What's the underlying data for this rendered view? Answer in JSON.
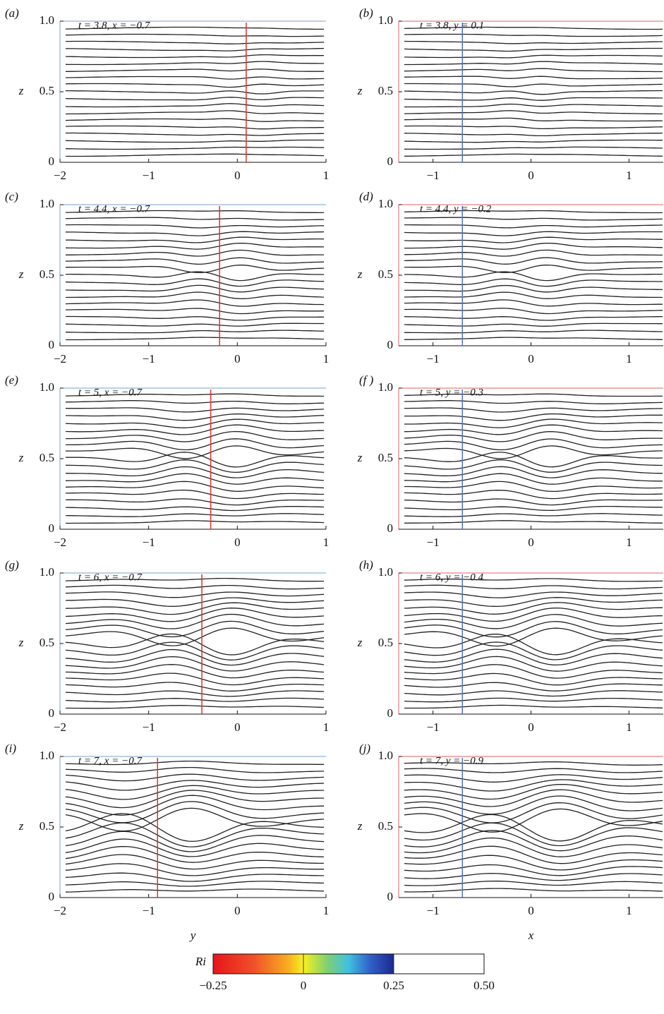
{
  "chart_data": [
    {
      "type": "contour",
      "panel_label": "(a)",
      "annotation": "t = 3.8, x = −0.7",
      "ylabel": "z",
      "xlim": [
        -2,
        1
      ],
      "ylim": [
        0,
        1
      ],
      "xticks": [
        {
          "value": -2,
          "label": "−2"
        },
        {
          "value": -1,
          "label": "−1"
        },
        0,
        1
      ],
      "yticks": [
        0,
        0.5,
        {
          "value": 1,
          "label": "1.0"
        }
      ],
      "marker_x": 0.1,
      "marker_color": "#e03030",
      "frame_color": "#7a9fd6"
    },
    {
      "type": "contour",
      "panel_label": "(b)",
      "annotation": "t = 3.8, y = 0.1",
      "ylabel": "z",
      "xlim": [
        -1.35,
        1.35
      ],
      "ylim": [
        0,
        1
      ],
      "xticks": [
        {
          "value": -1,
          "label": "−1"
        },
        0,
        1
      ],
      "yticks": [
        0,
        0.5,
        {
          "value": 1,
          "label": "1.0"
        }
      ],
      "marker_x": -0.7,
      "marker_color": "#5070c0",
      "frame_color": "#e06060"
    },
    {
      "type": "contour",
      "panel_label": "(c)",
      "annotation": "t = 4.4, x = −0.7",
      "ylabel": "z",
      "xlim": [
        -2,
        1
      ],
      "ylim": [
        0,
        1
      ],
      "xticks": [
        {
          "value": -2,
          "label": "−2"
        },
        {
          "value": -1,
          "label": "−1"
        },
        0,
        1
      ],
      "yticks": [
        0,
        0.5,
        {
          "value": 1,
          "label": "1.0"
        }
      ],
      "marker_x": -0.2,
      "marker_color": "#e03030",
      "frame_color": "#7a9fd6"
    },
    {
      "type": "contour",
      "panel_label": "(d)",
      "annotation": "t = 4.4, y = −0.2",
      "ylabel": "z",
      "xlim": [
        -1.35,
        1.35
      ],
      "ylim": [
        0,
        1
      ],
      "xticks": [
        {
          "value": -1,
          "label": "−1"
        },
        0,
        1
      ],
      "yticks": [
        0,
        0.5,
        {
          "value": 1,
          "label": "1.0"
        }
      ],
      "marker_x": -0.7,
      "marker_color": "#5070c0",
      "frame_color": "#e06060"
    },
    {
      "type": "contour",
      "panel_label": "(e)",
      "annotation": "t = 5, x = −0.7",
      "ylabel": "z",
      "xlim": [
        -2,
        1
      ],
      "ylim": [
        0,
        1
      ],
      "xticks": [
        {
          "value": -2,
          "label": "−2"
        },
        {
          "value": -1,
          "label": "−1"
        },
        0,
        1
      ],
      "yticks": [
        0,
        0.5,
        {
          "value": 1,
          "label": "1.0"
        }
      ],
      "marker_x": -0.3,
      "marker_color": "#e03030",
      "frame_color": "#7a9fd6"
    },
    {
      "type": "contour",
      "panel_label": "(f )",
      "annotation": "t = 5, y = −0.3",
      "ylabel": "z",
      "xlim": [
        -1.35,
        1.35
      ],
      "ylim": [
        0,
        1
      ],
      "xticks": [
        {
          "value": -1,
          "label": "−1"
        },
        0,
        1
      ],
      "yticks": [
        0,
        0.5,
        {
          "value": 1,
          "label": "1.0"
        }
      ],
      "marker_x": -0.7,
      "marker_color": "#5070c0",
      "frame_color": "#e06060"
    },
    {
      "type": "contour",
      "panel_label": "(g)",
      "annotation": "t = 6, x = −0.7",
      "ylabel": "z",
      "xlim": [
        -2,
        1
      ],
      "ylim": [
        0,
        1
      ],
      "xticks": [
        {
          "value": -2,
          "label": "−2"
        },
        {
          "value": -1,
          "label": "−1"
        },
        0,
        1
      ],
      "yticks": [
        0,
        0.5,
        {
          "value": 1,
          "label": "1.0"
        }
      ],
      "marker_x": -0.4,
      "marker_color": "#e03030",
      "frame_color": "#7a9fd6"
    },
    {
      "type": "contour",
      "panel_label": "(h)",
      "annotation": "t = 6, y = −0.4",
      "ylabel": "z",
      "xlim": [
        -1.35,
        1.35
      ],
      "ylim": [
        0,
        1
      ],
      "xticks": [
        {
          "value": -1,
          "label": "−1"
        },
        0,
        1
      ],
      "yticks": [
        0,
        0.5,
        {
          "value": 1,
          "label": "1.0"
        }
      ],
      "marker_x": -0.7,
      "marker_color": "#5070c0",
      "frame_color": "#e06060"
    },
    {
      "type": "contour",
      "panel_label": "(i)",
      "annotation": "t = 7, x = −0.7",
      "ylabel": "z",
      "xlabel": "y",
      "xlim": [
        -2,
        1
      ],
      "ylim": [
        0,
        1
      ],
      "xticks": [
        {
          "value": -2,
          "label": "−2"
        },
        {
          "value": -1,
          "label": "−1"
        },
        0,
        1
      ],
      "yticks": [
        0,
        0.5,
        {
          "value": 1,
          "label": "1.0"
        }
      ],
      "marker_x": -0.9,
      "marker_color": "#e03030",
      "frame_color": "#7a9fd6"
    },
    {
      "type": "contour",
      "panel_label": "(j)",
      "annotation": "t = 7, y = −0.9",
      "ylabel": "z",
      "xlabel": "x",
      "xlim": [
        -1.35,
        1.35
      ],
      "ylim": [
        0,
        1
      ],
      "xticks": [
        {
          "value": -1,
          "label": "−1"
        },
        0,
        1
      ],
      "yticks": [
        0,
        0.5,
        {
          "value": 1,
          "label": "1.0"
        }
      ],
      "marker_x": -0.7,
      "marker_color": "#5070c0",
      "frame_color": "#e06060"
    },
    {
      "type": "colorbar",
      "label": "Ri",
      "xlim": [
        -0.25,
        0.5
      ],
      "xticks": [
        {
          "value": -0.25,
          "label": "−0.25"
        },
        0,
        0.25,
        {
          "value": 0.5,
          "label": "0.50"
        }
      ]
    }
  ]
}
